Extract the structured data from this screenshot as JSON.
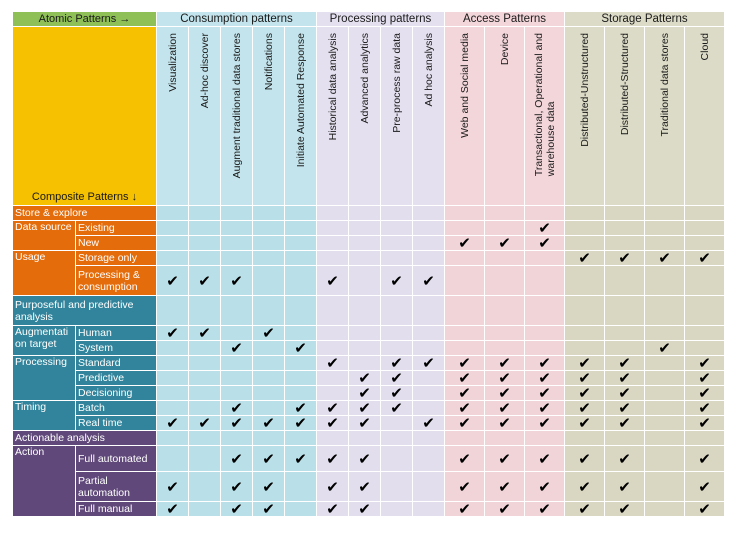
{
  "header": {
    "atomic_label": "Atomic Patterns →",
    "composite_label": "Composite Patterns ↓",
    "groups": [
      {
        "label": "Consumption patterns",
        "span": 5,
        "header_color": "#c3e4ec",
        "cell_color": "#b9e0e8"
      },
      {
        "label": "Processing patterns",
        "span": 4,
        "header_color": "#e5e0ef",
        "cell_color": "#e2deed"
      },
      {
        "label": "Access Patterns",
        "span": 3,
        "header_color": "#f3d6da",
        "cell_color": "#f0d4d8"
      },
      {
        "label": "Storage Patterns",
        "span": 4,
        "header_color": "#dcdbc7",
        "cell_color": "#d9d7c2"
      }
    ],
    "columns": [
      "Visualization",
      "Ad-hoc discover",
      "Augment traditional data stores",
      "Notifications",
      "Initiate Automated Response",
      "Historical data analysis",
      "Advanced analytics",
      "Pre-process raw data",
      "Ad hoc analysis",
      "Web and Social media",
      "Device",
      "Transactional, Operational and\nwarehouse data",
      "Distributed-Unstructured",
      "Distributed-Structured",
      "Traditional data stores",
      "Cloud"
    ]
  },
  "check_symbol": "✔",
  "colors": {
    "orange": "#e46c0a",
    "teal": "#31849b",
    "purple": "#60497a"
  },
  "rows": [
    {
      "cat": "Store & explore",
      "sub": "",
      "span_full": true,
      "color": "orange",
      "checks": []
    },
    {
      "cat": "Data source",
      "cat_rows": 2,
      "sub": "Existing",
      "color": "orange",
      "checks": [
        11
      ]
    },
    {
      "sub": "New",
      "color": "orange",
      "checks": [
        9,
        10,
        11
      ]
    },
    {
      "cat": "Usage",
      "cat_rows": 2,
      "sub": "Storage only",
      "color": "orange",
      "checks": [
        12,
        13,
        14,
        15
      ]
    },
    {
      "sub": "Processing &\nconsumption",
      "color": "orange",
      "checks": [
        0,
        1,
        2,
        5,
        7,
        8
      ],
      "tall": true
    },
    {
      "cat": "Purposeful and predictive\nanalysis",
      "sub": "",
      "span_full": true,
      "color": "teal",
      "checks": [],
      "tall": true
    },
    {
      "cat": "Augmentati\non target",
      "cat_rows": 2,
      "sub": "Human",
      "color": "teal",
      "checks": [
        0,
        1,
        3
      ]
    },
    {
      "sub": "System",
      "color": "teal",
      "checks": [
        2,
        4,
        14
      ]
    },
    {
      "cat": "Processing",
      "cat_rows": 3,
      "sub": "Standard",
      "color": "teal",
      "checks": [
        5,
        7,
        8,
        9,
        10,
        11,
        12,
        13,
        15
      ]
    },
    {
      "sub": "Predictive",
      "color": "teal",
      "checks": [
        6,
        7,
        9,
        10,
        11,
        12,
        13,
        15
      ]
    },
    {
      "sub": "Decisioning",
      "color": "teal",
      "checks": [
        6,
        7,
        9,
        10,
        11,
        12,
        13,
        15
      ]
    },
    {
      "cat": "Timing",
      "cat_rows": 2,
      "sub": "Batch",
      "color": "teal",
      "checks": [
        2,
        4,
        5,
        6,
        7,
        9,
        10,
        11,
        12,
        13,
        15
      ]
    },
    {
      "sub": "Real time",
      "color": "teal",
      "checks": [
        0,
        1,
        2,
        3,
        4,
        5,
        6,
        8,
        9,
        10,
        11,
        12,
        13,
        15
      ]
    },
    {
      "cat": "Actionable analysis",
      "sub": "",
      "span_full": true,
      "color": "purple",
      "checks": []
    },
    {
      "cat": "Action",
      "cat_rows": 3,
      "sub": "Full automated",
      "color": "purple",
      "checks": [
        2,
        3,
        4,
        5,
        6,
        9,
        10,
        11,
        12,
        13,
        15
      ],
      "tall2": true
    },
    {
      "sub": "Partial\nautomation",
      "color": "purple",
      "checks": [
        0,
        2,
        3,
        5,
        6,
        9,
        10,
        11,
        12,
        13,
        15
      ],
      "tall": true
    },
    {
      "sub": "Full manual",
      "color": "purple",
      "checks": [
        0,
        2,
        3,
        5,
        6,
        9,
        10,
        11,
        12,
        13,
        15
      ]
    }
  ]
}
